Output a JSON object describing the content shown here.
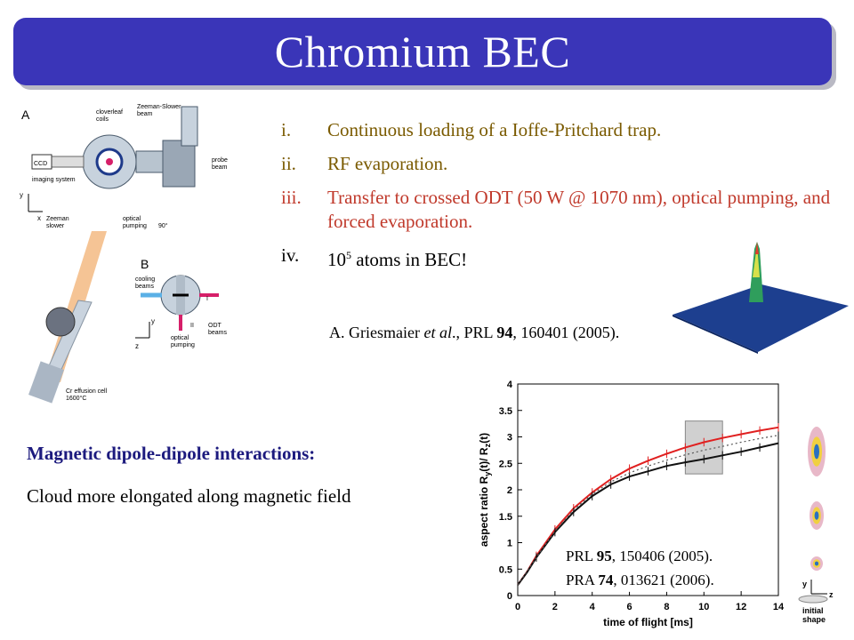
{
  "title": "Chromium BEC",
  "items": [
    {
      "num": "i.",
      "text": "Continuous loading of a Ioffe-Pritchard trap."
    },
    {
      "num": "ii.",
      "text": "RF evaporation."
    },
    {
      "num": "iii.",
      "text": "Transfer to crossed ODT (50 W @ 1070 nm), optical pumping, and forced evaporation."
    },
    {
      "num": "iv.",
      "pre": "10",
      "sup": "5",
      "post": " atoms in BEC!"
    }
  ],
  "ref1": {
    "prefix": "A. Griesmaier ",
    "etal": "et al",
    "mid": "., PRL ",
    "vol": "94",
    "rest": ", 160401 (2005)."
  },
  "dipole": {
    "heading": "Magnetic dipole-dipole interactions:",
    "text": "Cloud more elongated along magnetic field"
  },
  "refs2": [
    {
      "journal": "PRL ",
      "vol": "95",
      "rest": ", 150406 (2005)."
    },
    {
      "journal": "PRA ",
      "vol": "74",
      "rest": ", 013621 (2006)."
    }
  ],
  "apparatus_labels": {
    "panelA": "A",
    "panelB": "B",
    "cloverleaf": "cloverleaf",
    "coils": "coils",
    "zeeman_slower_beam1": "Zeeman-Slower",
    "zeeman_slower_beam2": "beam",
    "ccd": "CCD",
    "imaging": "imaging system",
    "probe1": "probe",
    "probe2": "beam",
    "zeeman1": "Zeeman",
    "zeeman2": "slower",
    "optical_pumping1": "optical",
    "optical_pumping2": "pumping",
    "cooling1": "cooling",
    "cooling2": "beams",
    "odt1": "ODT",
    "odt2": "beams",
    "op_b1": "optical",
    "op_b2": "pumping",
    "effusion1": "Cr effusion cell",
    "effusion2": "1600°C",
    "ax_y": "y",
    "ax_x": "x",
    "ax_z": "z",
    "angle": "90°",
    "roman_i": "I",
    "roman_ii": "II"
  },
  "chart_data": {
    "type": "line",
    "xlabel": "time of flight [ms]",
    "ylabel": "aspect ratio R",
    "ylabel_sub1": "y",
    "ylabel_mid": "(t)/ R",
    "ylabel_sub2": "z",
    "ylabel_end": "(t)",
    "xlim": [
      0,
      14
    ],
    "ylim": [
      0,
      4
    ],
    "xticks": [
      "0",
      "2",
      "4",
      "6",
      "8",
      "10",
      "12",
      "14"
    ],
    "yticks": [
      "0",
      "0.5",
      "1",
      "1.5",
      "2",
      "2.5",
      "3",
      "3.5",
      "4"
    ],
    "series": [
      {
        "color": "#e02020",
        "x": [
          0,
          0.5,
          1,
          2,
          3,
          4,
          5,
          6,
          7,
          8,
          9,
          10,
          11,
          12,
          13,
          14
        ],
        "y": [
          0.2,
          0.45,
          0.75,
          1.25,
          1.65,
          1.95,
          2.2,
          2.4,
          2.55,
          2.68,
          2.8,
          2.9,
          2.98,
          3.05,
          3.12,
          3.18
        ]
      },
      {
        "color": "#111111",
        "x": [
          0,
          0.5,
          1,
          2,
          3,
          4,
          5,
          6,
          7,
          8,
          9,
          10,
          11,
          12,
          13,
          14
        ],
        "y": [
          0.2,
          0.44,
          0.72,
          1.2,
          1.58,
          1.88,
          2.1,
          2.25,
          2.35,
          2.45,
          2.52,
          2.58,
          2.65,
          2.72,
          2.8,
          2.88
        ]
      },
      {
        "color": "#555555",
        "dashed": true,
        "x": [
          0,
          1,
          2,
          3,
          4,
          5,
          6,
          7,
          8,
          9,
          10,
          11,
          12,
          13,
          14
        ],
        "y": [
          0.2,
          0.72,
          1.22,
          1.62,
          1.92,
          2.15,
          2.32,
          2.45,
          2.56,
          2.66,
          2.75,
          2.82,
          2.9,
          2.97,
          3.03
        ]
      }
    ],
    "highlight": {
      "x": [
        9,
        11
      ],
      "y": [
        2.3,
        3.3
      ]
    },
    "side_labels": {
      "y": "y",
      "z": "z",
      "initial1": "initial",
      "initial2": "shape"
    },
    "colors": {
      "red_series": "#e02020",
      "black_series": "#111111"
    }
  }
}
